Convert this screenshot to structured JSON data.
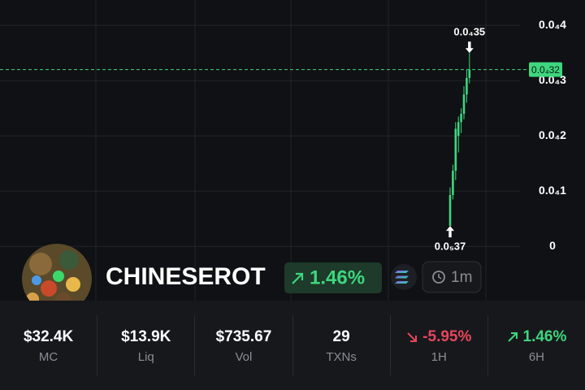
{
  "chart_data": {
    "type": "candlestick",
    "open": [
      3.7e-06,
      9.3e-06,
      1.37e-05,
      2e-05,
      2.25e-05,
      2.4e-05,
      2.75e-05,
      3.05e-05
    ],
    "high": [
      1.07e-05,
      1.48e-05,
      2.25e-05,
      2.35e-05,
      2.5e-05,
      2.9e-05,
      3.2e-05,
      3.5e-05
    ],
    "low": [
      3.7e-06,
      8.5e-06,
      1.2e-05,
      1.7e-05,
      2.05e-05,
      2.3e-05,
      2.6e-05,
      2.95e-05
    ],
    "close": [
      9.3e-06,
      1.37e-05,
      2.13e-05,
      2.25e-05,
      2.4e-05,
      2.75e-05,
      3.05e-05,
      3.2e-05
    ],
    "color": "#3ed67e",
    "ylim": [
      -5.4e-06,
      4.46e-05
    ],
    "yticks": [
      {
        "value": 4e-05,
        "label": "0.0₄4"
      },
      {
        "value": 3e-05,
        "label": "0.0₄3"
      },
      {
        "value": 2e-05,
        "label": "0.0₄2"
      },
      {
        "value": 1e-05,
        "label": "0.0₄1"
      },
      0
    ],
    "grid": true,
    "last_price": {
      "value": 3.2e-05,
      "label": "0.0₄32"
    },
    "high_marker": {
      "value": 3.5e-05,
      "label": "0.0₄35"
    },
    "low_marker": {
      "value": 3.7e-06,
      "label": "0.0₅37"
    }
  },
  "token": {
    "name": "CHINESEROT",
    "change": "1.46%",
    "interval": "1m"
  },
  "stats": [
    {
      "value": "$32.4K",
      "label": "MC"
    },
    {
      "value": "$13.9K",
      "label": "Liq"
    },
    {
      "value": "$735.67",
      "label": "Vol"
    },
    {
      "value": "29",
      "label": "TXNs"
    },
    {
      "value": "-5.95%",
      "label": "1H"
    },
    {
      "value": "1.46%",
      "label": "6H"
    }
  ]
}
